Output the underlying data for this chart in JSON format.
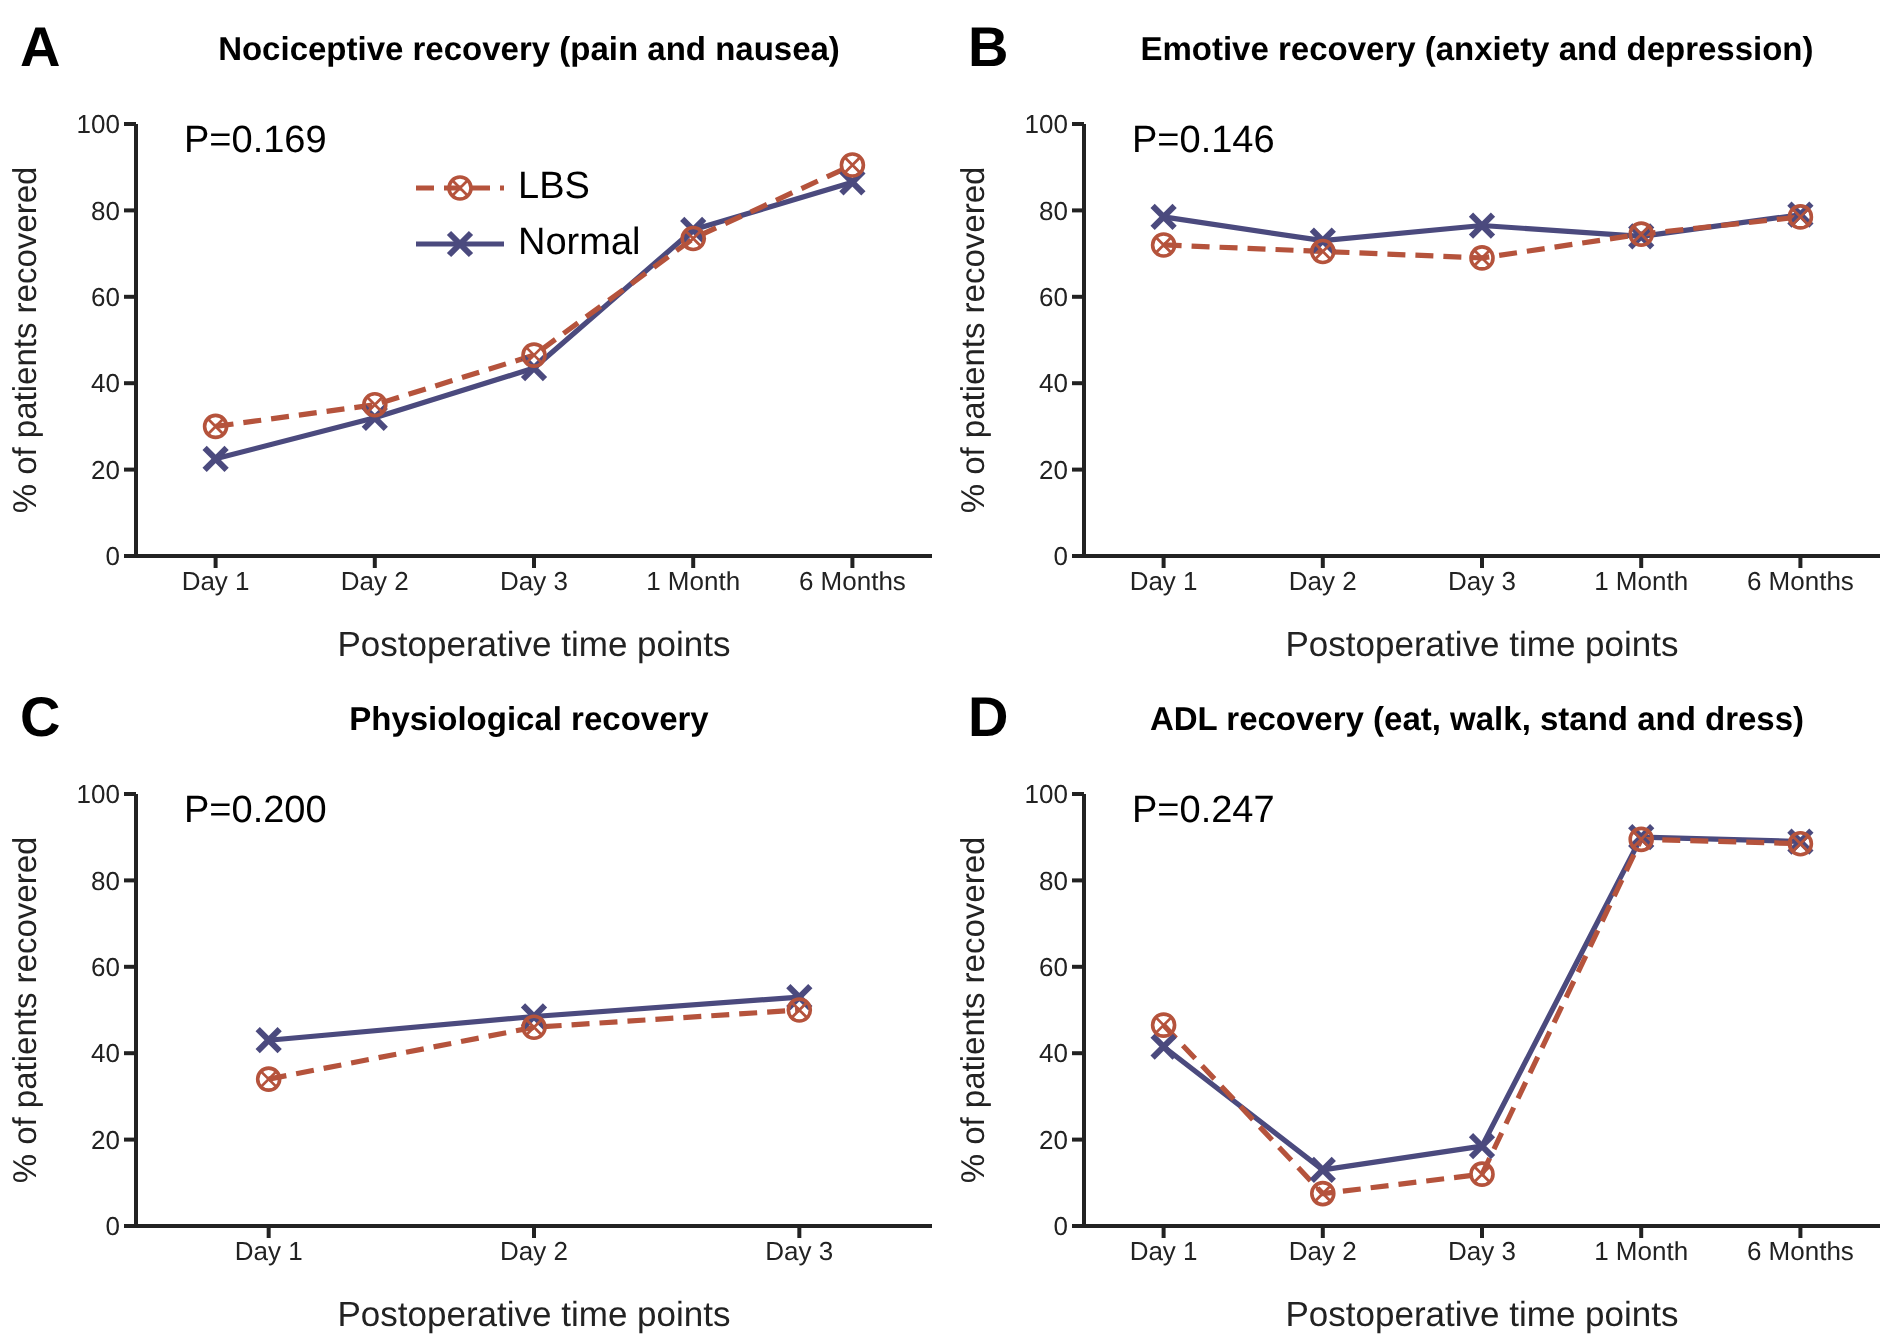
{
  "chart_data": [
    {
      "type": "line",
      "title": "Nociceptive recovery (pain and nausea)",
      "xlabel": "Postoperative time points",
      "ylabel": "% of patients recovered",
      "annotations": [
        "A",
        "P=0.169"
      ],
      "categories": [
        "Day 1",
        "Day 2",
        "Day 3",
        "1 Month",
        "6 Months"
      ],
      "ylim": [
        0,
        100
      ],
      "yticks": [
        0,
        20,
        40,
        60,
        80,
        100
      ],
      "legend": "top",
      "series": [
        {
          "name": "LBS",
          "color": "#b5533c",
          "marker": "circle",
          "line_style": "dashed",
          "values": [
            30,
            35,
            46.5,
            73.5,
            90.5
          ]
        },
        {
          "name": "Normal",
          "color": "#4b4a7e",
          "marker": "cross",
          "line_style": "solid",
          "values": [
            22.5,
            32,
            43.5,
            75.5,
            86.5
          ]
        }
      ]
    },
    {
      "type": "line",
      "title": "Emotive recovery (anxiety and depression)",
      "xlabel": "Postoperative time points",
      "ylabel": "% of patients recovered",
      "annotations": [
        "B",
        "P=0.146"
      ],
      "categories": [
        "Day 1",
        "Day 2",
        "Day 3",
        "1 Month",
        "6 Months"
      ],
      "ylim": [
        0,
        100
      ],
      "yticks": [
        0,
        20,
        40,
        60,
        80,
        100
      ],
      "series": [
        {
          "color": "#b5533c",
          "marker": "circle",
          "line_style": "dashed",
          "values": [
            72,
            70.5,
            69,
            74.5,
            78.5
          ]
        },
        {
          "color": "#4b4a7e",
          "marker": "cross",
          "line_style": "solid",
          "values": [
            78.5,
            73,
            76.5,
            74,
            79
          ]
        }
      ]
    },
    {
      "type": "line",
      "title": "Physiological recovery",
      "xlabel": "Postoperative time points",
      "ylabel": "% of patients recovered",
      "annotations": [
        "C",
        "P=0.200"
      ],
      "categories": [
        "Day 1",
        "Day 2",
        "Day 3"
      ],
      "ylim": [
        0,
        100
      ],
      "yticks": [
        0,
        20,
        40,
        60,
        80,
        100
      ],
      "series": [
        {
          "color": "#b5533c",
          "marker": "circle",
          "line_style": "dashed",
          "values": [
            34,
            46,
            50
          ]
        },
        {
          "color": "#4b4a7e",
          "marker": "cross",
          "line_style": "solid",
          "values": [
            43,
            48.5,
            53
          ]
        }
      ]
    },
    {
      "type": "line",
      "title": "ADL recovery (eat, walk, stand and dress)",
      "xlabel": "Postoperative time points",
      "ylabel": "% of patients recovered",
      "annotations": [
        "D",
        "P=0.247"
      ],
      "categories": [
        "Day 1",
        "Day 2",
        "Day 3",
        "1 Month",
        "6 Months"
      ],
      "ylim": [
        0,
        100
      ],
      "yticks": [
        0,
        20,
        40,
        60,
        80,
        100
      ],
      "series": [
        {
          "color": "#b5533c",
          "marker": "circle",
          "line_style": "dashed",
          "values": [
            46.5,
            7.5,
            12,
            89.5,
            88.5
          ]
        },
        {
          "color": "#4b4a7e",
          "marker": "cross",
          "line_style": "solid",
          "values": [
            41.5,
            13,
            18.5,
            90,
            89
          ]
        }
      ]
    }
  ]
}
